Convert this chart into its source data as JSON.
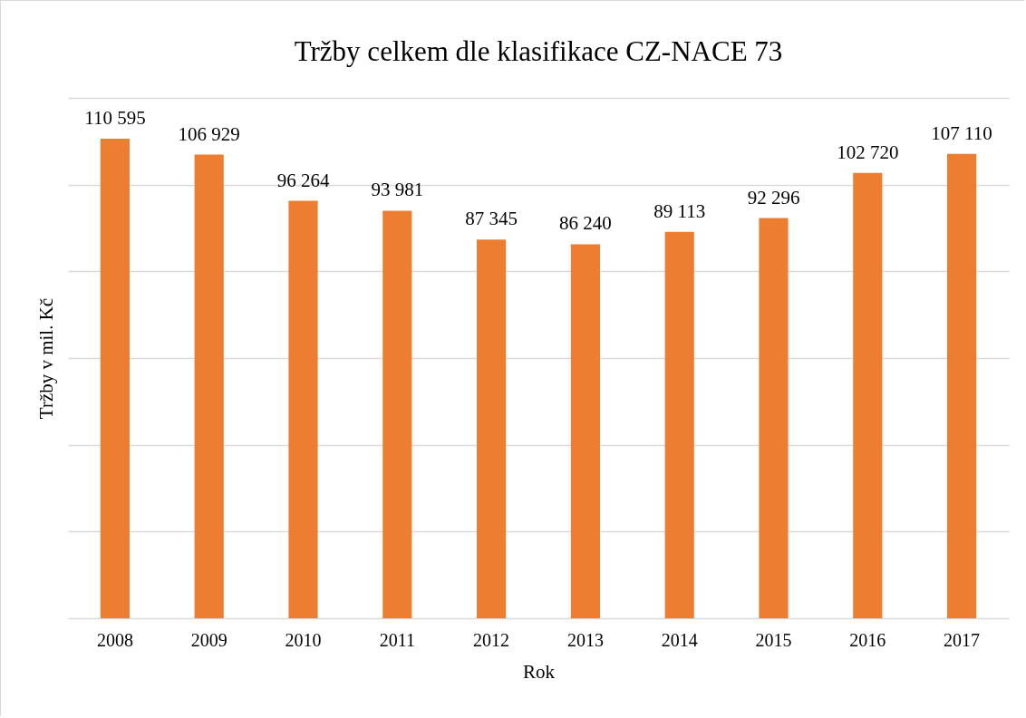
{
  "chart_data": {
    "type": "bar",
    "title": "Tržby celkem dle klasifikace CZ-NACE 73",
    "xlabel": "Rok",
    "ylabel": "Tržby v mil. Kč",
    "categories": [
      "2008",
      "2009",
      "2010",
      "2011",
      "2012",
      "2013",
      "2014",
      "2015",
      "2016",
      "2017"
    ],
    "values": [
      110595,
      106929,
      96264,
      93981,
      87345,
      86240,
      89113,
      92296,
      102720,
      107110
    ],
    "value_labels": [
      "110 595",
      "106 929",
      "96 264",
      "93 981",
      "87 345",
      "86 240",
      "89 113",
      "92 296",
      "102 720",
      "107 110"
    ],
    "color": "#ed7d31",
    "ylim": [
      0,
      120000
    ],
    "yticks": [
      {
        "value": 0,
        "label": null
      },
      {
        "value": 20000,
        "label": null
      },
      {
        "value": 40000,
        "label": null
      },
      {
        "value": 60000,
        "label": null
      },
      {
        "value": 80000,
        "label": null
      },
      {
        "value": 100000,
        "label": null
      },
      {
        "value": 120000,
        "label": null
      }
    ],
    "tick_labels": "x",
    "grid": "y"
  }
}
